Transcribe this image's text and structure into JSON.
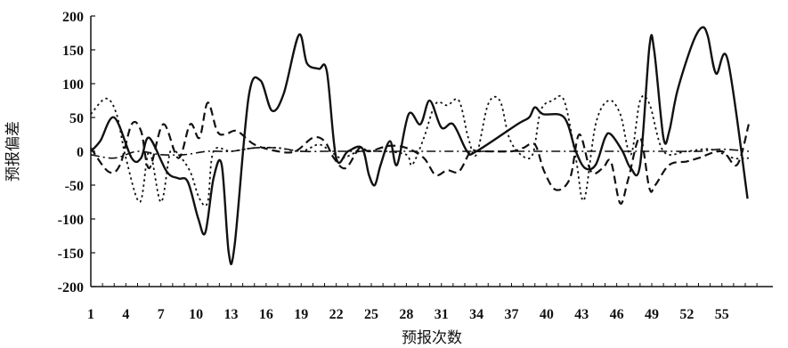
{
  "chart_data": {
    "type": "line",
    "title": "",
    "xlabel": "预报次数",
    "ylabel": "预报偏差",
    "ylim": [
      -200,
      200
    ],
    "xlim": [
      1,
      58
    ],
    "grid": false,
    "legend": "none",
    "y_ticks": [
      200,
      150,
      100,
      50,
      0,
      -50,
      -100,
      -150,
      -200
    ],
    "x_tick_values": [
      1,
      4,
      7,
      10,
      13,
      16,
      19,
      22,
      25,
      28,
      31,
      34,
      37,
      40,
      43,
      46,
      49,
      52,
      55
    ],
    "x_tick_labels": [
      "1",
      "4",
      "7",
      "10",
      "13",
      "16",
      "19",
      "22",
      "25",
      "28",
      "31",
      "34",
      "37",
      "40",
      "43",
      "46",
      "49",
      "52",
      "55"
    ],
    "series": [
      {
        "style": "solid",
        "points": [
          [
            1,
            0
          ],
          [
            1.8,
            15
          ],
          [
            3,
            50
          ],
          [
            4.5,
            -10
          ],
          [
            5.3,
            -10
          ],
          [
            6,
            20
          ],
          [
            7.5,
            -30
          ],
          [
            8.5,
            -40
          ],
          [
            9.3,
            -45
          ],
          [
            10.2,
            -100
          ],
          [
            10.8,
            -120
          ],
          [
            11.5,
            -40
          ],
          [
            12.2,
            -20
          ],
          [
            12.8,
            -150
          ],
          [
            13.3,
            -140
          ],
          [
            14.5,
            80
          ],
          [
            15.5,
            105
          ],
          [
            16.5,
            60
          ],
          [
            17.5,
            85
          ],
          [
            18.8,
            172
          ],
          [
            19.5,
            130
          ],
          [
            20.5,
            122
          ],
          [
            21.2,
            118
          ],
          [
            22,
            -10
          ],
          [
            23,
            0
          ],
          [
            24.2,
            5
          ],
          [
            24.8,
            -35
          ],
          [
            25.3,
            -50
          ],
          [
            25.8,
            -20
          ],
          [
            26.6,
            15
          ],
          [
            27.2,
            -20
          ],
          [
            28.2,
            55
          ],
          [
            29.2,
            40
          ],
          [
            30,
            75
          ],
          [
            31,
            35
          ],
          [
            32,
            40
          ],
          [
            33.2,
            0
          ],
          [
            34,
            0
          ],
          [
            37.5,
            40
          ],
          [
            38.5,
            50
          ],
          [
            39,
            65
          ],
          [
            39.7,
            55
          ],
          [
            41.5,
            50
          ],
          [
            42.5,
            0
          ],
          [
            43.3,
            -25
          ],
          [
            44.2,
            -20
          ],
          [
            45,
            20
          ],
          [
            45.5,
            25
          ],
          [
            46.5,
            0
          ],
          [
            47.2,
            -25
          ],
          [
            48,
            -20
          ],
          [
            48.8,
            155
          ],
          [
            49.2,
            150
          ],
          [
            50,
            20
          ],
          [
            50.5,
            30
          ],
          [
            51.2,
            90
          ],
          [
            52.5,
            160
          ],
          [
            53.3,
            183
          ],
          [
            53.8,
            170
          ],
          [
            54.5,
            115
          ],
          [
            55.5,
            135
          ],
          [
            57.2,
            -70
          ]
        ]
      },
      {
        "style": "dashed",
        "points": [
          [
            1,
            5
          ],
          [
            2.5,
            -30
          ],
          [
            3.5,
            -20
          ],
          [
            4.5,
            40
          ],
          [
            5.3,
            30
          ],
          [
            6,
            -25
          ],
          [
            7.2,
            40
          ],
          [
            8.5,
            -10
          ],
          [
            9.5,
            40
          ],
          [
            10.3,
            20
          ],
          [
            11,
            72
          ],
          [
            11.8,
            30
          ],
          [
            12.5,
            25
          ],
          [
            13.5,
            30
          ],
          [
            15,
            10
          ],
          [
            17,
            0
          ],
          [
            18.5,
            0
          ],
          [
            20,
            20
          ],
          [
            21,
            15
          ],
          [
            21.8,
            -10
          ],
          [
            22.8,
            -25
          ],
          [
            24,
            5
          ],
          [
            24.8,
            0
          ],
          [
            26.5,
            8
          ],
          [
            28,
            5
          ],
          [
            29.5,
            -10
          ],
          [
            30.5,
            -35
          ],
          [
            31.5,
            -28
          ],
          [
            32.5,
            -30
          ],
          [
            33.5,
            0
          ],
          [
            34.2,
            0
          ],
          [
            37,
            0
          ],
          [
            38,
            5
          ],
          [
            39,
            10
          ],
          [
            39.8,
            -30
          ],
          [
            40.8,
            -57
          ],
          [
            42,
            -40
          ],
          [
            42.8,
            25
          ],
          [
            43.8,
            -30
          ],
          [
            44.8,
            -25
          ],
          [
            45.5,
            -15
          ],
          [
            46.3,
            -77
          ],
          [
            47,
            -40
          ],
          [
            48,
            20
          ],
          [
            48.8,
            -55
          ],
          [
            49.3,
            -50
          ],
          [
            50.5,
            -20
          ],
          [
            52,
            -15
          ],
          [
            53,
            -10
          ],
          [
            55,
            0
          ],
          [
            56.3,
            -20
          ],
          [
            57.3,
            40
          ]
        ]
      },
      {
        "style": "dotted",
        "points": [
          [
            1,
            55
          ],
          [
            2.3,
            78
          ],
          [
            3.2,
            55
          ],
          [
            4,
            -10
          ],
          [
            5.2,
            -75
          ],
          [
            6,
            0
          ],
          [
            7,
            -75
          ],
          [
            7.8,
            0
          ],
          [
            8.5,
            -5
          ],
          [
            9.5,
            -30
          ],
          [
            10.3,
            -70
          ],
          [
            11,
            -75
          ],
          [
            11.5,
            0
          ],
          [
            13,
            0
          ],
          [
            15,
            5
          ],
          [
            17,
            5
          ],
          [
            19,
            0
          ],
          [
            20.5,
            10
          ],
          [
            21.5,
            0
          ],
          [
            22.5,
            -10
          ],
          [
            24,
            0
          ],
          [
            26,
            0
          ],
          [
            28,
            -5
          ],
          [
            28.5,
            -20
          ],
          [
            29.5,
            20
          ],
          [
            30.5,
            70
          ],
          [
            31.5,
            68
          ],
          [
            32.5,
            75
          ],
          [
            33.3,
            20
          ],
          [
            34,
            -5
          ],
          [
            35,
            70
          ],
          [
            36,
            75
          ],
          [
            36.8,
            20
          ],
          [
            37.8,
            -5
          ],
          [
            38.8,
            -5
          ],
          [
            39.5,
            60
          ],
          [
            40.5,
            75
          ],
          [
            41.5,
            75
          ],
          [
            42.5,
            -10
          ],
          [
            43.2,
            -72
          ],
          [
            44.2,
            40
          ],
          [
            45.3,
            75
          ],
          [
            46.3,
            55
          ],
          [
            47.2,
            -5
          ],
          [
            48,
            75
          ],
          [
            48.8,
            70
          ],
          [
            50,
            0
          ],
          [
            52,
            0
          ],
          [
            54,
            3
          ],
          [
            56,
            -10
          ],
          [
            57.3,
            -10
          ]
        ]
      },
      {
        "style": "dash-dot",
        "points": [
          [
            1,
            -5
          ],
          [
            3,
            -10
          ],
          [
            5,
            0
          ],
          [
            7,
            -5
          ],
          [
            9,
            -5
          ],
          [
            11,
            0
          ],
          [
            13,
            0
          ],
          [
            15,
            5
          ],
          [
            17,
            5
          ],
          [
            19,
            0
          ],
          [
            21,
            0
          ],
          [
            23,
            0
          ],
          [
            25,
            0
          ],
          [
            27,
            0
          ],
          [
            29,
            0
          ],
          [
            31,
            0
          ],
          [
            33,
            0
          ],
          [
            35,
            0
          ],
          [
            37,
            0
          ],
          [
            39,
            0
          ],
          [
            41,
            0
          ],
          [
            43,
            0
          ],
          [
            45,
            0
          ],
          [
            47,
            0
          ],
          [
            49,
            0
          ],
          [
            51,
            0
          ],
          [
            53,
            0
          ],
          [
            55,
            3
          ],
          [
            57.3,
            0
          ]
        ]
      }
    ]
  }
}
